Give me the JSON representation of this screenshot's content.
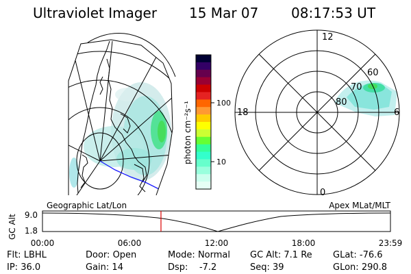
{
  "header": {
    "instrument": "Ultraviolet Imager",
    "date": "15 Mar 07",
    "time": "08:17:53 UT"
  },
  "colorbar": {
    "unit_label": "photon cm⁻²s⁻¹",
    "ticks": [
      "100",
      "10"
    ],
    "colors_top_to_bottom": [
      "#000033",
      "#330066",
      "#66004d",
      "#990033",
      "#cc0000",
      "#e52222",
      "#ff6600",
      "#ff9933",
      "#ffcc00",
      "#ffff00",
      "#ccff33",
      "#66ff33",
      "#33ff99",
      "#33ffcc",
      "#66ffcc",
      "#99ffdd",
      "#ccffee",
      "#e6fff5"
    ]
  },
  "polar_plot": {
    "mlt_labels": {
      "top": "12",
      "left": "18",
      "right": "6",
      "bottom": "0"
    },
    "lat_labels": [
      "60",
      "70",
      "80"
    ]
  },
  "timeline": {
    "left_title": "Geographic Lat/Lon",
    "right_title": "Apex MLat/MLT",
    "axis_name": "GC Alt",
    "y_ticks": [
      "9.0",
      "1.8"
    ],
    "x_ticks": [
      "00:00",
      "06:00",
      "12:00",
      "18:00",
      "23:59"
    ],
    "current_marker_time": "08:17:53"
  },
  "footer": {
    "row1": [
      {
        "key": "Flt:",
        "val": "LBHL"
      },
      {
        "key": "Door:",
        "val": "Open"
      },
      {
        "key": "Mode:",
        "val": "Normal"
      },
      {
        "key": "GC Alt:",
        "val": "7.1 Re"
      },
      {
        "key": "GLat:",
        "val": "-76.6"
      }
    ],
    "row2": [
      {
        "key": "IP:",
        "val": "36.0"
      },
      {
        "key": "Gain:",
        "val": "14"
      },
      {
        "key": "Dsp:",
        "val": "-7.2"
      },
      {
        "key": "Seq:",
        "val": "39"
      },
      {
        "key": "GLon:",
        "val": "290.8"
      }
    ]
  },
  "colors": {
    "aurora_light": "#c8e8e8",
    "aurora_mid": "#66e0d0",
    "aurora_strong": "#33ddaa",
    "aurora_green": "#44dd55",
    "orbit_track": "#1a1aff",
    "time_marker": "#dd0000"
  }
}
